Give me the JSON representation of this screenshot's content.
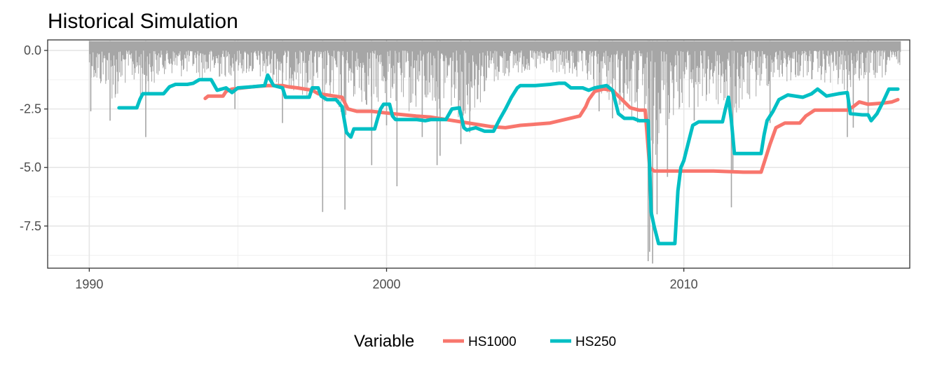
{
  "chart_data": {
    "type": "line",
    "title": "Historical Simulation",
    "xlabel": "",
    "ylabel": "",
    "xlim": [
      1988.6,
      2017.6
    ],
    "ylim": [
      -9.3,
      0.45
    ],
    "x_ticks": [
      1990,
      2000,
      2010
    ],
    "x_tick_labels": [
      "1990",
      "2000",
      "2010"
    ],
    "y_ticks": [
      0,
      -2.5,
      -5,
      -7.5
    ],
    "y_tick_labels": [
      "0.0",
      "-2.5",
      "-5.0",
      "-7.5"
    ],
    "grid": true,
    "legend": {
      "title": "Variable",
      "position": "bottom",
      "entries": [
        {
          "label": "HS1000",
          "color": "#F8766D"
        },
        {
          "label": "HS250",
          "color": "#00BFC4"
        }
      ]
    },
    "returns": {
      "color": "#A6A6A6",
      "description_in_legend": false,
      "profile": [
        [
          1990.0,
          -1.0
        ],
        [
          1990.3,
          -1.8
        ],
        [
          1990.6,
          -1.6
        ],
        [
          1990.9,
          -2.6
        ],
        [
          1991.3,
          -1.2
        ],
        [
          1991.8,
          -2.2
        ],
        [
          1992.5,
          -1.0
        ],
        [
          1993.0,
          -1.2
        ],
        [
          1993.5,
          -1.0
        ],
        [
          1994.0,
          -1.4
        ],
        [
          1994.5,
          -1.2
        ],
        [
          1995.0,
          -1.0
        ],
        [
          1995.5,
          -1.2
        ],
        [
          1996.0,
          -1.4
        ],
        [
          1996.5,
          -1.6
        ],
        [
          1997.0,
          -1.8
        ],
        [
          1997.6,
          -2.2
        ],
        [
          1998.0,
          -2.6
        ],
        [
          1998.6,
          -3.0
        ],
        [
          1999.0,
          -2.2
        ],
        [
          1999.5,
          -2.6
        ],
        [
          2000.0,
          -2.0
        ],
        [
          2000.5,
          -2.6
        ],
        [
          2001.0,
          -2.8
        ],
        [
          2001.5,
          -2.6
        ],
        [
          2002.0,
          -2.4
        ],
        [
          2002.5,
          -3.0
        ],
        [
          2003.0,
          -2.6
        ],
        [
          2003.5,
          -1.6
        ],
        [
          2004.0,
          -1.2
        ],
        [
          2004.5,
          -1.0
        ],
        [
          2005.0,
          -1.0
        ],
        [
          2005.5,
          -1.0
        ],
        [
          2006.0,
          -1.2
        ],
        [
          2006.5,
          -1.4
        ],
        [
          2007.0,
          -1.8
        ],
        [
          2007.5,
          -2.2
        ],
        [
          2008.0,
          -2.8
        ],
        [
          2008.4,
          -3.4
        ],
        [
          2008.7,
          -4.4
        ],
        [
          2008.9,
          -5.0
        ],
        [
          2009.2,
          -4.0
        ],
        [
          2009.6,
          -3.0
        ],
        [
          2010.0,
          -2.4
        ],
        [
          2010.5,
          -2.8
        ],
        [
          2011.0,
          -2.2
        ],
        [
          2011.6,
          -3.4
        ],
        [
          2012.0,
          -2.6
        ],
        [
          2012.5,
          -2.0
        ],
        [
          2013.0,
          -1.4
        ],
        [
          2013.5,
          -1.4
        ],
        [
          2014.0,
          -1.2
        ],
        [
          2014.5,
          -1.4
        ],
        [
          2015.0,
          -1.6
        ],
        [
          2015.5,
          -1.8
        ],
        [
          2016.0,
          -1.4
        ],
        [
          2016.5,
          -1.4
        ],
        [
          2017.0,
          -1.0
        ],
        [
          2017.3,
          -0.6
        ]
      ],
      "spikes": [
        [
          1990.05,
          -2.6
        ],
        [
          1990.7,
          -3.0
        ],
        [
          1991.9,
          -3.7
        ],
        [
          1994.9,
          -2.5
        ],
        [
          1996.5,
          -3.1
        ],
        [
          1997.85,
          -6.9
        ],
        [
          1998.6,
          -6.8
        ],
        [
          1999.5,
          -4.9
        ],
        [
          2000.0,
          -3.2
        ],
        [
          2000.35,
          -5.8
        ],
        [
          2001.2,
          -3.7
        ],
        [
          2001.8,
          -4.5
        ],
        [
          2001.7,
          -4.9
        ],
        [
          2002.5,
          -4.0
        ],
        [
          2002.8,
          -3.5
        ],
        [
          2007.15,
          -2.6
        ],
        [
          2007.6,
          -2.9
        ],
        [
          2008.8,
          -9.0
        ],
        [
          2008.85,
          -8.6
        ],
        [
          2008.95,
          -9.1
        ],
        [
          2009.1,
          -7.0
        ],
        [
          2009.45,
          -5.4
        ],
        [
          2010.35,
          -3.0
        ],
        [
          2011.6,
          -6.7
        ],
        [
          2011.65,
          -5.2
        ],
        [
          2012.9,
          -3.1
        ],
        [
          2015.5,
          -3.7
        ],
        [
          2015.7,
          -3.3
        ],
        [
          2016.2,
          -2.7
        ]
      ]
    },
    "series": [
      {
        "name": "HS1000",
        "color": "#F8766D",
        "points": [
          [
            1993.9,
            -2.05
          ],
          [
            1994.0,
            -1.95
          ],
          [
            1994.5,
            -1.95
          ],
          [
            1994.6,
            -1.75
          ],
          [
            1994.8,
            -1.65
          ],
          [
            1995.5,
            -1.55
          ],
          [
            1996.0,
            -1.5
          ],
          [
            1996.5,
            -1.5
          ],
          [
            1996.7,
            -1.55
          ],
          [
            1997.0,
            -1.6
          ],
          [
            1997.5,
            -1.7
          ],
          [
            1997.7,
            -1.85
          ],
          [
            1998.0,
            -1.9
          ],
          [
            1998.5,
            -2.0
          ],
          [
            1998.7,
            -2.5
          ],
          [
            1999.0,
            -2.6
          ],
          [
            1999.5,
            -2.6
          ],
          [
            2000.2,
            -2.7
          ],
          [
            2001.0,
            -2.8
          ],
          [
            2001.5,
            -2.85
          ],
          [
            2002.0,
            -2.95
          ],
          [
            2002.5,
            -3.05
          ],
          [
            2003.0,
            -3.15
          ],
          [
            2003.5,
            -3.25
          ],
          [
            2004.0,
            -3.3
          ],
          [
            2004.5,
            -3.2
          ],
          [
            2005.0,
            -3.15
          ],
          [
            2005.5,
            -3.1
          ],
          [
            2006.0,
            -2.95
          ],
          [
            2006.5,
            -2.8
          ],
          [
            2006.7,
            -2.4
          ],
          [
            2006.8,
            -2.1
          ],
          [
            2007.0,
            -1.75
          ],
          [
            2007.3,
            -1.65
          ],
          [
            2007.6,
            -1.7
          ],
          [
            2007.8,
            -1.95
          ],
          [
            2008.0,
            -2.2
          ],
          [
            2008.2,
            -2.45
          ],
          [
            2008.5,
            -2.55
          ],
          [
            2008.7,
            -2.55
          ],
          [
            2008.85,
            -5.0
          ],
          [
            2009.0,
            -5.15
          ],
          [
            2010.0,
            -5.15
          ],
          [
            2011.0,
            -5.15
          ],
          [
            2012.0,
            -5.2
          ],
          [
            2012.6,
            -5.2
          ],
          [
            2012.7,
            -4.8
          ],
          [
            2012.9,
            -4.0
          ],
          [
            2013.1,
            -3.3
          ],
          [
            2013.4,
            -3.1
          ],
          [
            2013.9,
            -3.1
          ],
          [
            2014.1,
            -2.8
          ],
          [
            2014.4,
            -2.55
          ],
          [
            2015.0,
            -2.55
          ],
          [
            2015.5,
            -2.55
          ],
          [
            2015.7,
            -2.4
          ],
          [
            2015.9,
            -2.2
          ],
          [
            2016.2,
            -2.3
          ],
          [
            2016.7,
            -2.25
          ],
          [
            2017.0,
            -2.2
          ],
          [
            2017.2,
            -2.1
          ]
        ]
      },
      {
        "name": "HS250",
        "color": "#00BFC4",
        "points": [
          [
            1991.0,
            -2.45
          ],
          [
            1991.1,
            -2.45
          ],
          [
            1991.6,
            -2.45
          ],
          [
            1991.7,
            -2.1
          ],
          [
            1991.8,
            -1.85
          ],
          [
            1992.5,
            -1.85
          ],
          [
            1992.7,
            -1.55
          ],
          [
            1992.9,
            -1.45
          ],
          [
            1993.3,
            -1.45
          ],
          [
            1993.5,
            -1.4
          ],
          [
            1993.7,
            -1.25
          ],
          [
            1994.1,
            -1.25
          ],
          [
            1994.3,
            -1.7
          ],
          [
            1994.6,
            -1.6
          ],
          [
            1994.8,
            -1.8
          ],
          [
            1995.0,
            -1.6
          ],
          [
            1995.5,
            -1.55
          ],
          [
            1995.9,
            -1.5
          ],
          [
            1996.0,
            -1.05
          ],
          [
            1996.2,
            -1.5
          ],
          [
            1996.5,
            -1.6
          ],
          [
            1996.6,
            -2.0
          ],
          [
            1997.0,
            -2.0
          ],
          [
            1997.4,
            -2.0
          ],
          [
            1997.5,
            -1.6
          ],
          [
            1997.7,
            -1.6
          ],
          [
            1997.8,
            -1.95
          ],
          [
            1998.0,
            -2.1
          ],
          [
            1998.3,
            -2.1
          ],
          [
            1998.5,
            -2.4
          ],
          [
            1998.65,
            -3.5
          ],
          [
            1998.8,
            -3.7
          ],
          [
            1998.9,
            -3.35
          ],
          [
            1999.6,
            -3.35
          ],
          [
            1999.7,
            -2.9
          ],
          [
            1999.8,
            -2.5
          ],
          [
            1999.9,
            -2.3
          ],
          [
            2000.1,
            -2.3
          ],
          [
            2000.2,
            -2.8
          ],
          [
            2000.3,
            -2.95
          ],
          [
            2001.0,
            -2.95
          ],
          [
            2001.3,
            -3.0
          ],
          [
            2001.5,
            -2.95
          ],
          [
            2002.0,
            -2.95
          ],
          [
            2002.2,
            -2.5
          ],
          [
            2002.45,
            -2.45
          ],
          [
            2002.6,
            -3.3
          ],
          [
            2002.7,
            -3.4
          ],
          [
            2003.0,
            -3.3
          ],
          [
            2003.3,
            -3.45
          ],
          [
            2003.6,
            -3.45
          ],
          [
            2003.8,
            -2.95
          ],
          [
            2004.0,
            -2.5
          ],
          [
            2004.2,
            -2.0
          ],
          [
            2004.4,
            -1.6
          ],
          [
            2004.5,
            -1.5
          ],
          [
            2005.0,
            -1.5
          ],
          [
            2005.5,
            -1.45
          ],
          [
            2005.8,
            -1.4
          ],
          [
            2006.0,
            -1.4
          ],
          [
            2006.2,
            -1.6
          ],
          [
            2006.6,
            -1.6
          ],
          [
            2006.8,
            -1.7
          ],
          [
            2007.0,
            -1.6
          ],
          [
            2007.4,
            -1.5
          ],
          [
            2007.6,
            -1.7
          ],
          [
            2007.8,
            -2.7
          ],
          [
            2008.0,
            -2.9
          ],
          [
            2008.3,
            -2.9
          ],
          [
            2008.5,
            -3.0
          ],
          [
            2008.8,
            -3.0
          ],
          [
            2008.9,
            -6.9
          ],
          [
            2009.0,
            -7.5
          ],
          [
            2009.15,
            -8.25
          ],
          [
            2009.5,
            -8.25
          ],
          [
            2009.7,
            -8.25
          ],
          [
            2009.8,
            -6.0
          ],
          [
            2009.9,
            -5.0
          ],
          [
            2010.0,
            -4.7
          ],
          [
            2010.1,
            -4.2
          ],
          [
            2010.2,
            -3.7
          ],
          [
            2010.3,
            -3.2
          ],
          [
            2010.5,
            -3.05
          ],
          [
            2011.0,
            -3.05
          ],
          [
            2011.3,
            -3.05
          ],
          [
            2011.4,
            -2.5
          ],
          [
            2011.5,
            -2.0
          ],
          [
            2011.6,
            -3.0
          ],
          [
            2011.7,
            -4.4
          ],
          [
            2012.0,
            -4.4
          ],
          [
            2012.6,
            -4.4
          ],
          [
            2012.7,
            -3.6
          ],
          [
            2012.8,
            -3.0
          ],
          [
            2013.0,
            -2.6
          ],
          [
            2013.2,
            -2.1
          ],
          [
            2013.5,
            -1.9
          ],
          [
            2014.0,
            -2.0
          ],
          [
            2014.3,
            -1.85
          ],
          [
            2014.5,
            -1.65
          ],
          [
            2014.8,
            -1.95
          ],
          [
            2015.0,
            -1.9
          ],
          [
            2015.2,
            -1.85
          ],
          [
            2015.5,
            -1.8
          ],
          [
            2015.6,
            -2.7
          ],
          [
            2016.0,
            -2.75
          ],
          [
            2016.2,
            -2.75
          ],
          [
            2016.3,
            -3.0
          ],
          [
            2016.5,
            -2.7
          ],
          [
            2016.7,
            -2.2
          ],
          [
            2016.9,
            -1.65
          ],
          [
            2017.2,
            -1.65
          ]
        ]
      }
    ]
  }
}
